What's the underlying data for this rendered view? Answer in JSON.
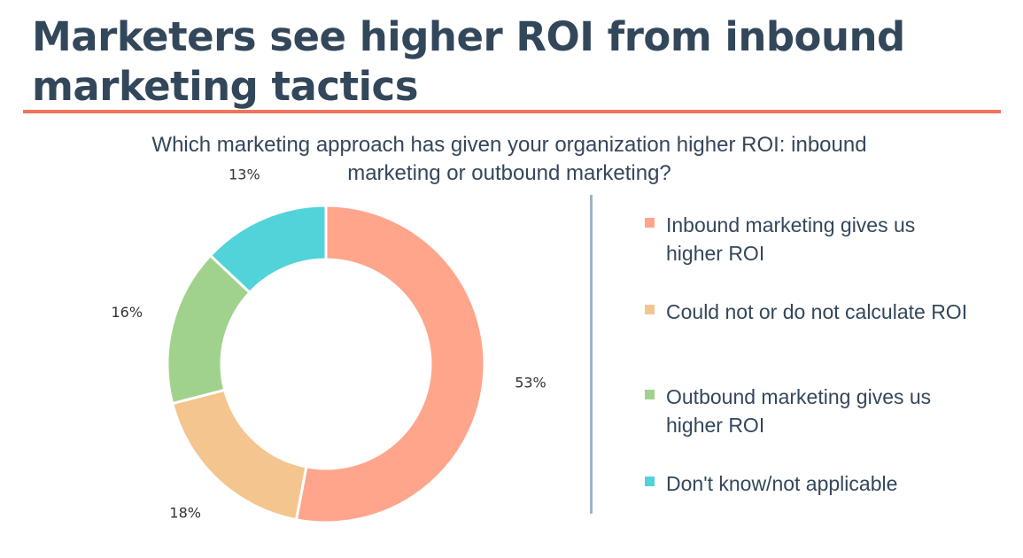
{
  "header": {
    "title": "Marketers see higher ROI from inbound marketing tactics"
  },
  "chart_data": {
    "type": "pie",
    "subtitle": "Which marketing approach has given your organization higher ROI: inbound marketing or outbound marketing?",
    "categories": [
      "Inbound marketing gives us higher ROI",
      "Could not or do not calculate ROI",
      "Outbound marketing gives us higher ROI",
      "Don't know/not applicable"
    ],
    "values": [
      53,
      18,
      16,
      13
    ],
    "data_labels": [
      "53%",
      "18%",
      "16%",
      "13%"
    ],
    "colors": [
      "#fea58b",
      "#f5c590",
      "#a1d28d",
      "#51d3d9"
    ],
    "donut": true,
    "legend_position": "right"
  }
}
